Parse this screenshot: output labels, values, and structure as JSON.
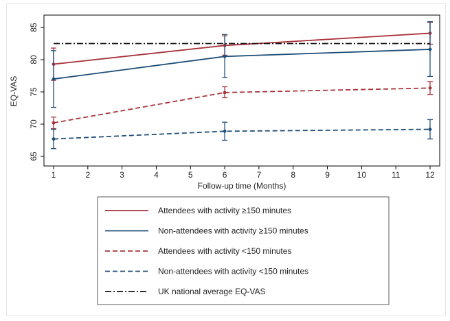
{
  "chart_data": {
    "type": "line",
    "title": "",
    "xlabel": "Follow-up time (Months)",
    "ylabel": "EQ-VAS",
    "xlim": [
      1,
      12
    ],
    "ylim": [
      65,
      85
    ],
    "x_ticks": [
      1,
      2,
      3,
      4,
      5,
      6,
      7,
      8,
      9,
      10,
      11,
      12
    ],
    "y_ticks": [
      65,
      70,
      75,
      80,
      85
    ],
    "grid": "horizontal",
    "legend_position": "bottom",
    "series": [
      {
        "name": "Attendees with activity ≥150 minutes",
        "color": "#a83239",
        "dash": "solid",
        "points": [
          {
            "x": 1,
            "y": 79.3,
            "lo": 76.8,
            "hi": 81.8
          },
          {
            "x": 6,
            "y": 82.2,
            "lo": 80.7,
            "hi": 83.7
          },
          {
            "x": 12,
            "y": 84.1,
            "lo": 82.4,
            "hi": 85.8
          }
        ]
      },
      {
        "name": "Non-attendees with activity ≥150 minutes",
        "color": "#1f4e79",
        "dash": "solid",
        "points": [
          {
            "x": 1,
            "y": 77.0,
            "lo": 72.6,
            "hi": 81.4
          },
          {
            "x": 6,
            "y": 80.5,
            "lo": 77.2,
            "hi": 83.9
          },
          {
            "x": 12,
            "y": 81.6,
            "lo": 77.4,
            "hi": 85.9
          }
        ]
      },
      {
        "name": "Attendees with activity <150 minutes",
        "color": "#a83239",
        "dash": "dashed",
        "points": [
          {
            "x": 1,
            "y": 70.2,
            "lo": 69.3,
            "hi": 71.1
          },
          {
            "x": 6,
            "y": 74.9,
            "lo": 74.1,
            "hi": 75.8
          },
          {
            "x": 12,
            "y": 75.6,
            "lo": 74.6,
            "hi": 76.6
          }
        ]
      },
      {
        "name": "Non-attendees with activity <150 minutes",
        "color": "#1f4e79",
        "dash": "dashed",
        "points": [
          {
            "x": 1,
            "y": 67.7,
            "lo": 66.2,
            "hi": 69.2
          },
          {
            "x": 6,
            "y": 68.9,
            "lo": 67.5,
            "hi": 70.3
          },
          {
            "x": 12,
            "y": 69.2,
            "lo": 67.7,
            "hi": 70.7
          }
        ]
      },
      {
        "name": "UK national average EQ-VAS",
        "color": "#111111",
        "dash": "dashdot",
        "reference_value": 82.5,
        "points": [
          {
            "x": 1,
            "y": 82.5
          },
          {
            "x": 12,
            "y": 82.5
          }
        ]
      }
    ]
  }
}
